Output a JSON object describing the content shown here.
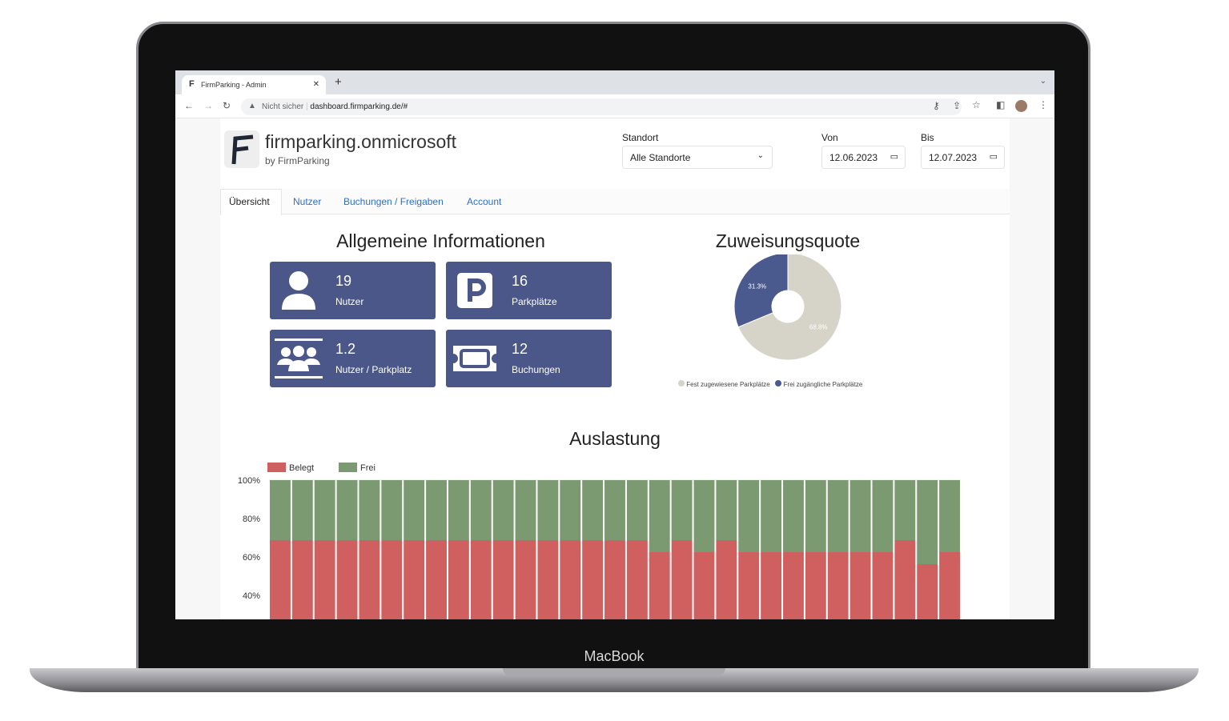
{
  "device": {
    "brand": "MacBook"
  },
  "browser": {
    "tab_title": "FirmParking - Admin",
    "new_tab": "+",
    "security": "Nicht sicher",
    "url": "dashboard.firmparking.de/#"
  },
  "header": {
    "title": "firmparking.onmicrosoft",
    "subtitle": "by FirmParking",
    "location_label": "Standort",
    "location_value": "Alle Standorte",
    "from_label": "Von",
    "from_value": "12.06.2023",
    "to_label": "Bis",
    "to_value": "12.07.2023"
  },
  "tabs": [
    {
      "label": "Übersicht",
      "active": true
    },
    {
      "label": "Nutzer"
    },
    {
      "label": "Buchungen / Freigaben"
    },
    {
      "label": "Account"
    }
  ],
  "info": {
    "title": "Allgemeine Informationen",
    "cards": [
      {
        "value": "19",
        "label": "Nutzer",
        "icon": "user-icon"
      },
      {
        "value": "16",
        "label": "Parkplätze",
        "icon": "parking-icon"
      },
      {
        "value": "1.2",
        "label": "Nutzer / Parkplatz",
        "icon": "users-group-icon"
      },
      {
        "value": "12",
        "label": "Buchungen",
        "icon": "ticket-icon"
      }
    ],
    "card_color": "#4a5788"
  },
  "chart_data": [
    {
      "type": "pie",
      "title": "Zuweisungsquote",
      "donut": true,
      "slices": [
        {
          "name": "Fest zugewiesene Parkplätze",
          "value": 68.8,
          "label": "68.8%",
          "color": "#d6d4c8"
        },
        {
          "name": "Frei zugängliche Parkplätze",
          "value": 31.3,
          "label": "31.3%",
          "color": "#4a5a8f"
        }
      ],
      "legend": "bottom"
    },
    {
      "type": "bar",
      "stacked": true,
      "title": "Auslastung",
      "legend": "top-left",
      "yticks": [
        "100%",
        "80%",
        "60%",
        "40%"
      ],
      "ylim": [
        0,
        100
      ],
      "series": [
        {
          "name": "Belegt",
          "color": "#d06060",
          "values": [
            68.75,
            68.75,
            68.75,
            68.75,
            68.75,
            68.75,
            68.75,
            68.75,
            68.75,
            68.75,
            68.75,
            68.75,
            68.75,
            68.75,
            68.75,
            68.75,
            68.75,
            62.5,
            68.75,
            62.5,
            68.75,
            62.5,
            62.5,
            62.5,
            62.5,
            62.5,
            62.5,
            62.5,
            68.75,
            56.25,
            62.5
          ]
        },
        {
          "name": "Frei",
          "color": "#7b9a72",
          "values": [
            31.25,
            31.25,
            31.25,
            31.25,
            31.25,
            31.25,
            31.25,
            31.25,
            31.25,
            31.25,
            31.25,
            31.25,
            31.25,
            31.25,
            31.25,
            31.25,
            31.25,
            37.5,
            31.25,
            37.5,
            31.25,
            37.5,
            37.5,
            37.5,
            37.5,
            37.5,
            37.5,
            37.5,
            31.25,
            43.75,
            37.5
          ]
        }
      ]
    }
  ]
}
